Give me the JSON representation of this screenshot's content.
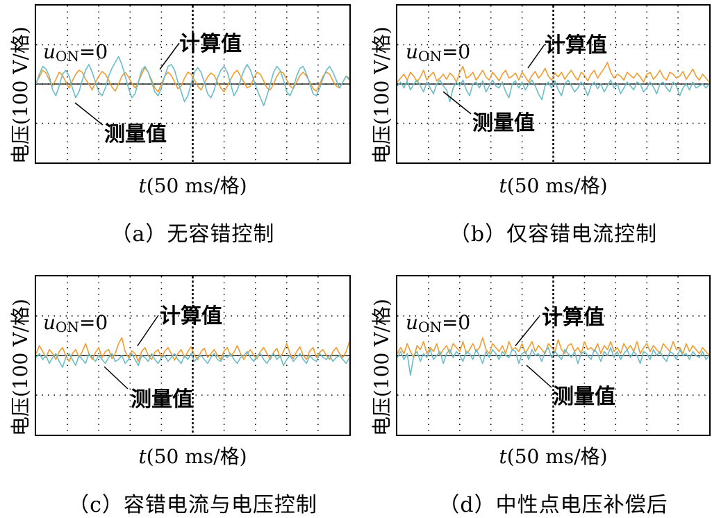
{
  "chart_data": [
    {
      "type": "line",
      "caption": "（a）无容错控制",
      "ylabel": "电压(100 V/格)",
      "xlabel_var": "t",
      "xlabel_unit": "(50 ms/格)",
      "zero_label": {
        "var": "u",
        "sub": "ON",
        "rest": "=0"
      },
      "annotations": {
        "calc": "计算值",
        "meas": "测量值"
      },
      "grid": true,
      "y_range_div": [
        -2,
        2
      ],
      "x_range_div": [
        0,
        10
      ],
      "series": [
        {
          "name": "计算值",
          "color": "#f29b2e",
          "values": [
            0.05,
            0.18,
            0.35,
            0.28,
            0.1,
            -0.05,
            0.12,
            0.3,
            0.22,
            0.05,
            -0.1,
            0.08,
            0.25,
            0.35,
            0.3,
            0.12,
            0.0,
            -0.15,
            0.05,
            0.2,
            0.32,
            0.25,
            0.1,
            -0.08,
            -0.18,
            0.0,
            0.2,
            0.3,
            0.18,
            0.02,
            -0.1,
            0.05,
            0.25,
            0.42,
            0.3,
            0.1,
            -0.1,
            -0.2,
            0.0,
            0.2,
            0.3,
            0.22,
            0.05,
            -0.12,
            -0.05,
            0.15,
            0.3,
            0.25,
            0.1,
            -0.05,
            -0.15,
            0.02,
            0.18,
            0.28,
            0.22,
            0.05,
            -0.1,
            -0.2,
            -0.05,
            0.12,
            0.28,
            0.35,
            0.2,
            0.05,
            -0.1,
            -0.05,
            0.15,
            0.3,
            0.25,
            0.08,
            -0.1,
            -0.15,
            0.0,
            0.2,
            0.32,
            0.28,
            0.1,
            -0.05,
            -0.12,
            0.05,
            0.22,
            0.3,
            0.2,
            0.05,
            -0.12,
            -0.18,
            0.0,
            0.2,
            0.3,
            0.25,
            0.08,
            -0.05,
            -0.1,
            0.05,
            0.2,
            0.15
          ]
        },
        {
          "name": "测量值",
          "color": "#6bbcc9",
          "values": [
            0.0,
            0.25,
            0.45,
            0.38,
            0.2,
            -0.15,
            -0.3,
            -0.05,
            0.25,
            0.35,
            0.2,
            -0.1,
            -0.35,
            -0.2,
            0.1,
            0.35,
            0.5,
            0.3,
            0.05,
            -0.2,
            -0.3,
            -0.1,
            0.2,
            0.4,
            0.55,
            0.7,
            0.5,
            0.2,
            -0.1,
            -0.35,
            -0.25,
            0.05,
            0.35,
            0.45,
            0.3,
            0.05,
            -0.2,
            -0.3,
            -0.1,
            0.2,
            0.45,
            0.5,
            0.35,
            0.05,
            -0.2,
            -0.45,
            -0.3,
            0.0,
            0.3,
            0.42,
            0.3,
            0.05,
            -0.25,
            -0.35,
            -0.15,
            0.15,
            0.35,
            0.45,
            0.3,
            0.0,
            -0.3,
            -0.15,
            0.1,
            0.35,
            0.5,
            0.35,
            0.1,
            -0.15,
            -0.35,
            -0.55,
            -0.3,
            0.0,
            0.3,
            0.45,
            0.35,
            0.1,
            -0.2,
            -0.3,
            -0.1,
            0.2,
            0.4,
            0.45,
            0.25,
            0.0,
            -0.25,
            -0.3,
            -0.1,
            0.15,
            0.35,
            0.45,
            0.3,
            0.1,
            -0.1,
            0.05,
            0.2,
            0.1
          ]
        }
      ]
    },
    {
      "type": "line",
      "caption": "（b）仅容错电流控制",
      "ylabel": "电压(100 V/格)",
      "xlabel_var": "t",
      "xlabel_unit": "(50 ms/格)",
      "zero_label": {
        "var": "u",
        "sub": "ON",
        "rest": "=0"
      },
      "annotations": {
        "calc": "计算值",
        "meas": "测量值"
      },
      "grid": true,
      "y_range_div": [
        -2,
        2
      ],
      "x_range_div": [
        0,
        10
      ],
      "series": [
        {
          "name": "计算值",
          "color": "#f29b2e",
          "values": [
            0.05,
            0.15,
            0.25,
            0.1,
            0.3,
            0.2,
            0.05,
            0.18,
            0.35,
            0.1,
            0.22,
            0.3,
            0.08,
            0.15,
            0.25,
            0.12,
            0.28,
            0.2,
            0.05,
            0.3,
            0.45,
            0.15,
            0.2,
            0.3,
            0.1,
            0.22,
            0.35,
            0.18,
            0.1,
            0.3,
            0.2,
            0.08,
            0.25,
            0.35,
            0.15,
            0.2,
            0.28,
            0.1,
            0.3,
            0.18,
            0.05,
            0.22,
            0.32,
            0.15,
            0.25,
            0.4,
            0.2,
            0.1,
            0.28,
            0.18,
            0.3,
            0.12,
            0.25,
            0.35,
            0.2,
            0.1,
            0.3,
            0.22,
            0.08,
            0.25,
            0.35,
            0.15,
            0.28,
            0.4,
            0.55,
            0.3,
            0.15,
            0.25,
            0.2,
            0.1,
            0.3,
            0.22,
            0.15,
            0.28,
            0.18,
            0.05,
            0.25,
            0.3,
            0.12,
            0.22,
            0.35,
            0.18,
            0.1,
            0.3,
            0.25,
            0.15,
            0.2,
            0.32,
            0.12,
            0.25,
            0.38,
            0.2,
            0.1,
            0.25,
            0.15,
            0.05
          ]
        },
        {
          "name": "测量值",
          "color": "#6bbcc9",
          "values": [
            -0.05,
            0.05,
            -0.1,
            0.08,
            -0.15,
            0.0,
            0.1,
            -0.05,
            -0.2,
            0.05,
            -0.1,
            -0.25,
            0.0,
            0.1,
            -0.05,
            -0.15,
            -0.45,
            -0.1,
            0.05,
            -0.05,
            0.1,
            -0.15,
            -0.3,
            0.0,
            0.05,
            -0.1,
            0.08,
            -0.2,
            -0.05,
            0.1,
            -0.05,
            -0.1,
            0.05,
            -0.2,
            -0.35,
            0.0,
            0.08,
            -0.1,
            0.05,
            -0.15,
            0.0,
            0.1,
            -0.05,
            -0.25,
            -0.4,
            -0.05,
            0.05,
            -0.1,
            0.08,
            -0.15,
            -0.3,
            0.0,
            0.1,
            -0.05,
            -0.2,
            -0.1,
            0.05,
            -0.08,
            -0.3,
            -0.05,
            0.05,
            -0.12,
            0.0,
            -0.2,
            -0.05,
            0.1,
            -0.1,
            0.0,
            -0.25,
            -0.1,
            0.05,
            -0.05,
            -0.15,
            0.05,
            0.0,
            -0.2,
            -0.1,
            0.05,
            -0.08,
            -0.25,
            0.0,
            0.05,
            -0.1,
            -0.2,
            0.05,
            -0.05,
            -0.3,
            -0.1,
            0.0,
            -0.15,
            0.05,
            -0.1,
            -0.05,
            0.0,
            -0.1,
            0.0
          ]
        }
      ]
    },
    {
      "type": "line",
      "caption": "（c）容错电流与电压控制",
      "ylabel": "电压(100 V/格)",
      "xlabel_var": "t",
      "xlabel_unit": "(50 ms/格)",
      "zero_label": {
        "var": "u",
        "sub": "ON",
        "rest": "=0"
      },
      "annotations": {
        "calc": "计算值",
        "meas": "测量值"
      },
      "grid": true,
      "y_range_div": [
        -2,
        2
      ],
      "x_range_div": [
        0,
        10
      ],
      "series": [
        {
          "name": "计算值",
          "color": "#f29b2e",
          "values": [
            0.05,
            0.25,
            0.1,
            -0.05,
            0.15,
            0.05,
            -0.1,
            0.1,
            0.2,
            0.0,
            -0.15,
            0.05,
            0.15,
            -0.05,
            0.1,
            0.3,
            0.05,
            -0.1,
            0.08,
            0.2,
            -0.05,
            0.1,
            0.15,
            -0.08,
            0.05,
            0.3,
            0.45,
            0.1,
            -0.05,
            0.12,
            0.05,
            -0.15,
            0.1,
            0.2,
            0.0,
            -0.1,
            0.08,
            0.15,
            -0.05,
            0.1,
            0.2,
            0.05,
            -0.12,
            0.05,
            0.15,
            -0.05,
            0.1,
            0.22,
            0.0,
            -0.1,
            0.1,
            0.18,
            -0.05,
            0.05,
            0.15,
            0.0,
            -0.1,
            0.12,
            0.2,
            -0.02,
            0.08,
            0.25,
            0.05,
            -0.1,
            0.05,
            0.15,
            0.0,
            -0.08,
            0.1,
            0.2,
            0.05,
            -0.1,
            0.08,
            0.18,
            -0.05,
            0.1,
            0.3,
            0.05,
            -0.08,
            0.1,
            0.22,
            0.0,
            -0.1,
            0.12,
            0.2,
            -0.05,
            0.08,
            0.15,
            0.0,
            -0.1,
            0.1,
            0.2,
            0.05,
            -0.05,
            0.1,
            0.35
          ]
        },
        {
          "name": "测量值",
          "color": "#6bbcc9",
          "values": [
            -0.05,
            0.05,
            -0.1,
            0.0,
            -0.2,
            -0.05,
            0.05,
            -0.15,
            -0.3,
            -0.05,
            0.05,
            -0.1,
            -0.25,
            0.0,
            -0.1,
            -0.2,
            0.05,
            -0.05,
            -0.15,
            0.0,
            -0.1,
            -0.2,
            -0.05,
            0.05,
            -0.15,
            -0.1,
            0.0,
            -0.2,
            -0.1,
            0.05,
            -0.1,
            -0.25,
            0.0,
            -0.05,
            -0.15,
            0.05,
            -0.1,
            -0.2,
            -0.05,
            0.0,
            -0.15,
            -0.05,
            0.05,
            -0.1,
            -0.2,
            0.0,
            -0.1,
            0.05,
            -0.15,
            -0.05,
            0.0,
            -0.1,
            -0.2,
            -0.05,
            0.05,
            -0.1,
            -0.15,
            0.0,
            -0.05,
            0.05,
            -0.1,
            -0.2,
            -0.05,
            0.0,
            0.1,
            -0.05,
            -0.15,
            0.0,
            0.05,
            -0.1,
            -0.2,
            -0.05,
            0.05,
            -0.1,
            0.0,
            -0.25,
            -0.1,
            0.0,
            -0.15,
            -0.05,
            0.05,
            -0.1,
            -0.2,
            0.0,
            -0.1,
            -0.15,
            0.05,
            -0.05,
            -0.1,
            0.0,
            -0.15,
            -0.05,
            0.0,
            -0.1,
            -0.2,
            -0.05
          ]
        }
      ]
    },
    {
      "type": "line",
      "caption": "（d）中性点电压补偿后",
      "ylabel": "电压(100 V/格)",
      "xlabel_var": "t",
      "xlabel_unit": "(50 ms/格)",
      "zero_label": {
        "var": "u",
        "sub": "ON",
        "rest": "=0"
      },
      "annotations": {
        "calc": "计算值",
        "meas": "测量值"
      },
      "grid": true,
      "y_range_div": [
        -2,
        2
      ],
      "x_range_div": [
        0,
        10
      ],
      "series": [
        {
          "name": "计算值",
          "color": "#f29b2e",
          "values": [
            0.05,
            0.2,
            0.05,
            0.3,
            0.1,
            -0.05,
            0.25,
            0.15,
            0.35,
            0.05,
            0.2,
            0.1,
            0.3,
            0.0,
            0.15,
            0.25,
            0.05,
            0.3,
            0.2,
            0.1,
            0.35,
            0.05,
            0.15,
            0.3,
            0.1,
            0.2,
            0.45,
            0.15,
            0.05,
            0.3,
            0.2,
            0.1,
            0.25,
            0.05,
            0.35,
            0.15,
            0.2,
            0.1,
            0.3,
            0.05,
            0.2,
            0.35,
            0.1,
            0.25,
            0.15,
            0.05,
            0.3,
            0.2,
            0.1,
            0.4,
            0.15,
            0.05,
            0.25,
            0.3,
            0.1,
            0.2,
            0.05,
            0.35,
            0.15,
            0.2,
            0.1,
            0.3,
            0.05,
            0.25,
            0.15,
            0.35,
            0.1,
            0.2,
            0.05,
            0.3,
            0.15,
            0.25,
            0.1,
            0.35,
            0.05,
            0.2,
            0.3,
            0.1,
            0.25,
            0.15,
            0.05,
            0.3,
            0.2,
            0.1,
            0.35,
            0.15,
            0.2,
            0.05,
            0.3,
            0.1,
            0.25,
            0.15,
            0.05,
            0.2,
            0.1,
            0.0
          ]
        },
        {
          "name": "测量值",
          "color": "#6bbcc9",
          "values": [
            -0.05,
            0.1,
            -0.1,
            0.05,
            -0.5,
            0.0,
            0.1,
            -0.15,
            0.05,
            -0.05,
            0.15,
            -0.1,
            0.0,
            0.1,
            -0.2,
            0.05,
            0.15,
            -0.05,
            0.1,
            0.0,
            -0.15,
            0.1,
            0.05,
            -0.1,
            0.15,
            0.0,
            -0.2,
            0.1,
            -0.05,
            0.15,
            0.05,
            -0.1,
            0.1,
            0.0,
            -0.05,
            0.15,
            0.1,
            -0.2,
            0.05,
            0.1,
            -0.1,
            0.15,
            0.0,
            0.05,
            -0.15,
            0.1,
            0.2,
            -0.05,
            0.1,
            0.0,
            -0.1,
            0.15,
            0.05,
            -0.05,
            0.1,
            -0.2,
            0.05,
            0.1,
            0.0,
            -0.1,
            0.15,
            0.05,
            -0.15,
            0.1,
            0.0,
            0.2,
            -0.05,
            0.1,
            -0.1,
            0.05,
            0.15,
            -0.05,
            0.1,
            0.0,
            -0.2,
            0.1,
            0.05,
            -0.1,
            0.15,
            0.0,
            0.1,
            -0.05,
            -0.15,
            0.1,
            0.05,
            -0.1,
            0.15,
            0.0,
            0.05,
            -0.1,
            0.1,
            0.0,
            -0.05,
            0.1,
            -0.1,
            0.0
          ]
        }
      ]
    }
  ]
}
